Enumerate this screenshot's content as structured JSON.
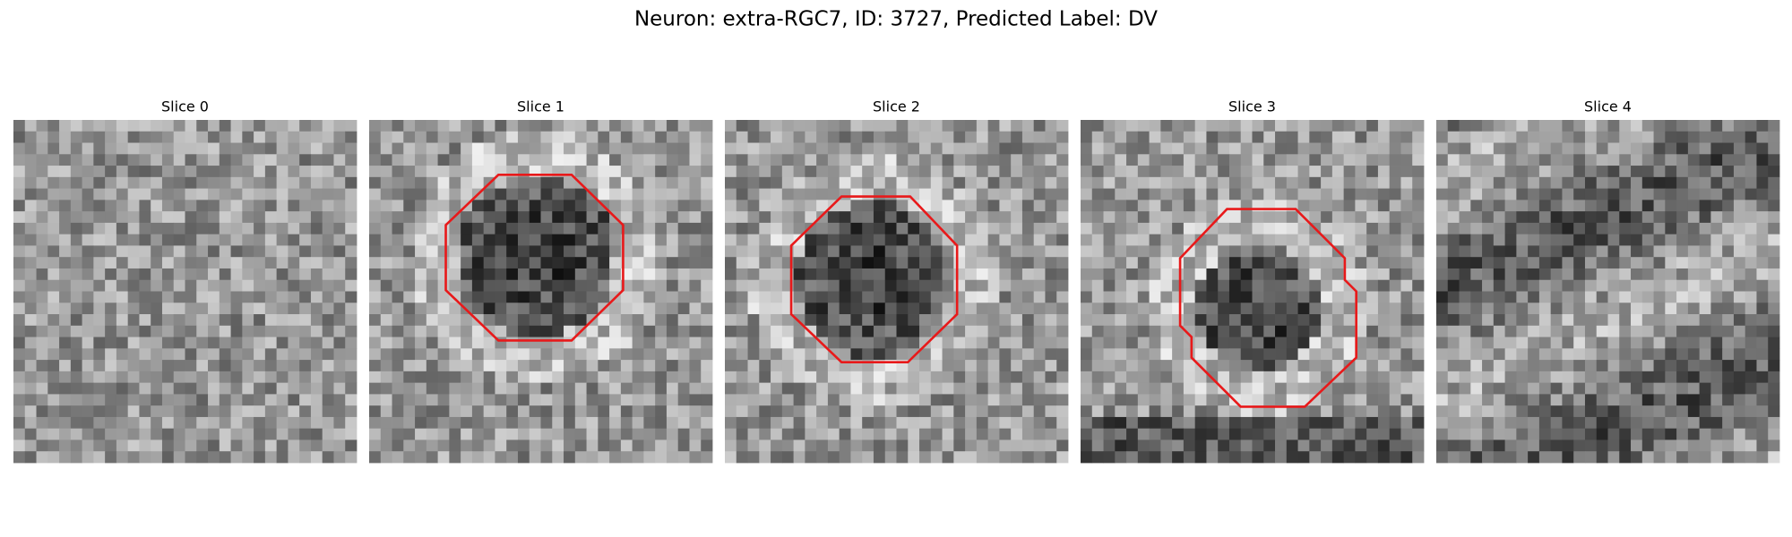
{
  "title": "Neuron: extra-RGC7, ID: 3727, Predicted Label: DV",
  "panels": [
    {
      "title": "Slice 0"
    },
    {
      "title": "Slice 1"
    },
    {
      "title": "Slice 2"
    },
    {
      "title": "Slice 3"
    },
    {
      "title": "Slice 4"
    }
  ]
}
